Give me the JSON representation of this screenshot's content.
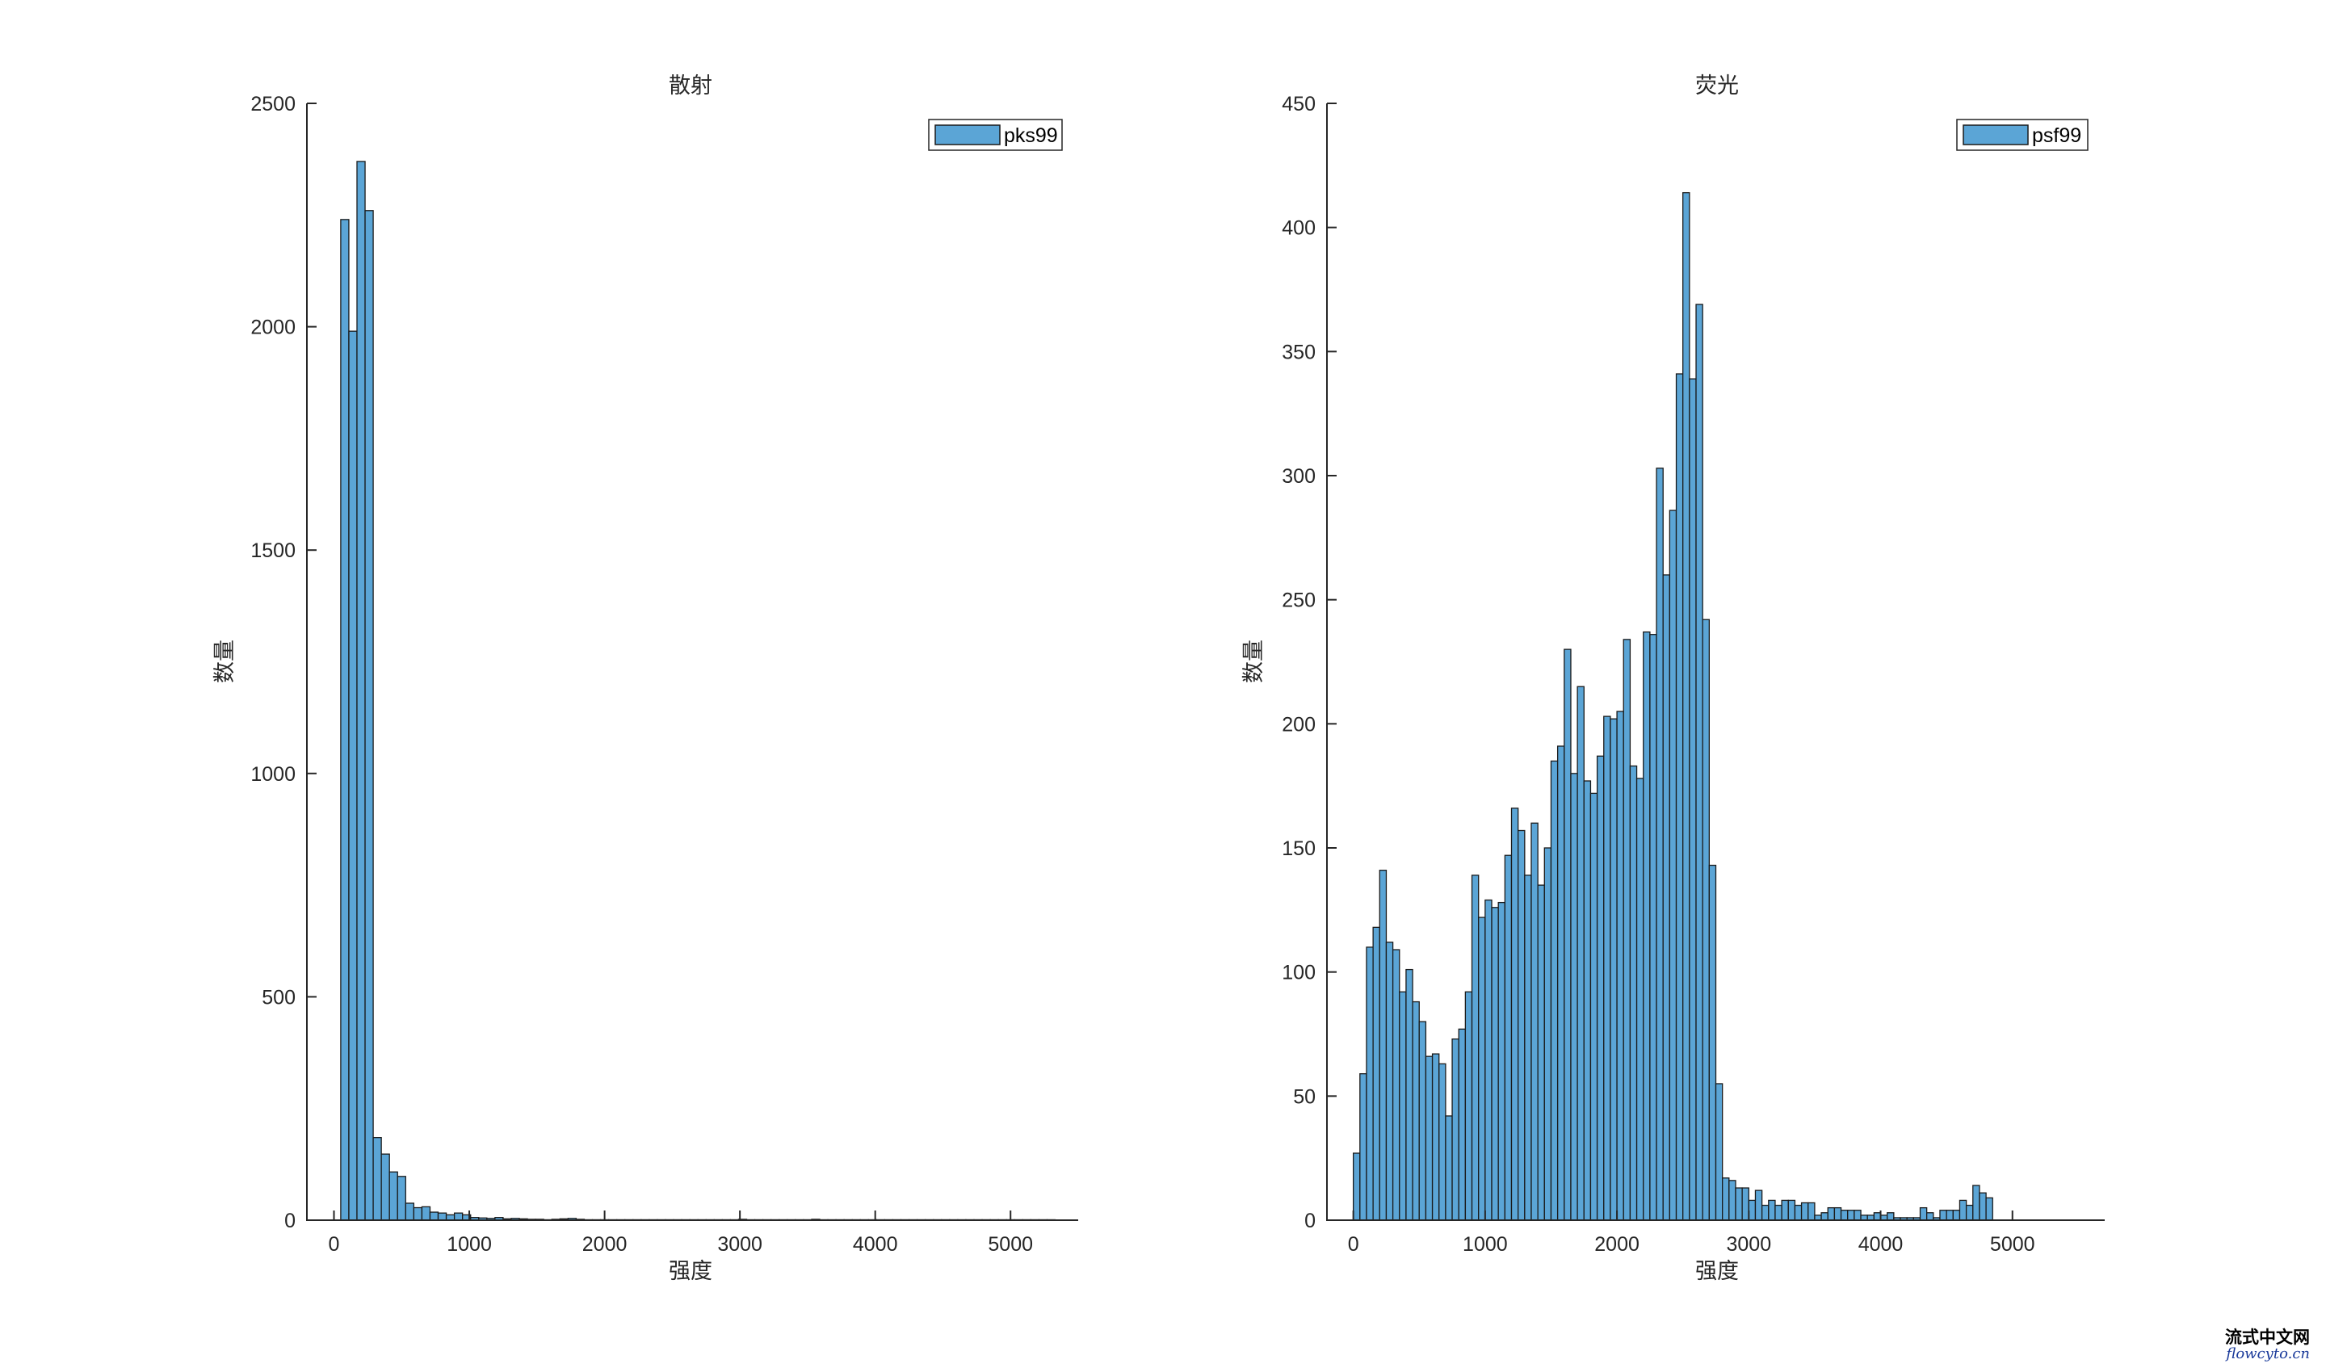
{
  "colors": {
    "bar_fill": "#5ba5d6",
    "bar_edge": "#1a1a1a",
    "axis": "#262626"
  },
  "watermark": {
    "title": "流式中文网",
    "url": "flowcyto.cn"
  },
  "chart_data": [
    {
      "type": "bar",
      "title": "散射",
      "xlabel": "强度",
      "ylabel": "数量",
      "legend": [
        "pks99"
      ],
      "legend_position": "top-right",
      "xlim": [
        -200,
        5500
      ],
      "ylim": [
        0,
        2500
      ],
      "xticks": [
        0,
        1000,
        2000,
        3000,
        4000,
        5000
      ],
      "yticks": [
        0,
        500,
        1000,
        1500,
        2000,
        2500
      ],
      "bin_start": 50,
      "bin_width": 60,
      "values": [
        2240,
        1990,
        2370,
        2260,
        185,
        148,
        108,
        98,
        38,
        28,
        30,
        18,
        16,
        12,
        16,
        12,
        6,
        5,
        4,
        6,
        3,
        4,
        3,
        2,
        2,
        1,
        2,
        3,
        4,
        2,
        1,
        1,
        1,
        1,
        1,
        1,
        1,
        1,
        1,
        1,
        1,
        1,
        1,
        1,
        1,
        1,
        1,
        1,
        1,
        2,
        1,
        1,
        1,
        1,
        1,
        1,
        1,
        1,
        2,
        1,
        1,
        1,
        1,
        1,
        1,
        1,
        1,
        1,
        1,
        1,
        1,
        1,
        1,
        1,
        1,
        1,
        1,
        1,
        1,
        1,
        1,
        1,
        1,
        1,
        1,
        1,
        1,
        1
      ]
    },
    {
      "type": "bar",
      "title": "荧光",
      "xlabel": "强度",
      "ylabel": "数量",
      "legend": [
        "psf99"
      ],
      "legend_position": "top-right",
      "xlim": [
        -200,
        5700
      ],
      "ylim": [
        0,
        450
      ],
      "xticks": [
        0,
        1000,
        2000,
        3000,
        4000,
        5000
      ],
      "yticks": [
        0,
        50,
        100,
        150,
        200,
        250,
        300,
        350,
        400,
        450
      ],
      "bin_start": 0,
      "bin_width": 50,
      "values": [
        27,
        59,
        110,
        118,
        141,
        112,
        109,
        92,
        101,
        88,
        80,
        66,
        67,
        63,
        42,
        73,
        77,
        92,
        139,
        122,
        129,
        126,
        128,
        147,
        166,
        157,
        139,
        160,
        135,
        150,
        185,
        191,
        230,
        180,
        215,
        177,
        172,
        187,
        203,
        202,
        205,
        234,
        183,
        178,
        237,
        236,
        303,
        260,
        286,
        341,
        414,
        339,
        369,
        242,
        143,
        55,
        17,
        16,
        13,
        13,
        8,
        12,
        6,
        8,
        6,
        8,
        8,
        6,
        7,
        7,
        2,
        3,
        5,
        5,
        4,
        4,
        4,
        2,
        2,
        3,
        2,
        3,
        1,
        1,
        1,
        1,
        5,
        3,
        1,
        4,
        4,
        4,
        8,
        6,
        14,
        11,
        9
      ]
    }
  ]
}
